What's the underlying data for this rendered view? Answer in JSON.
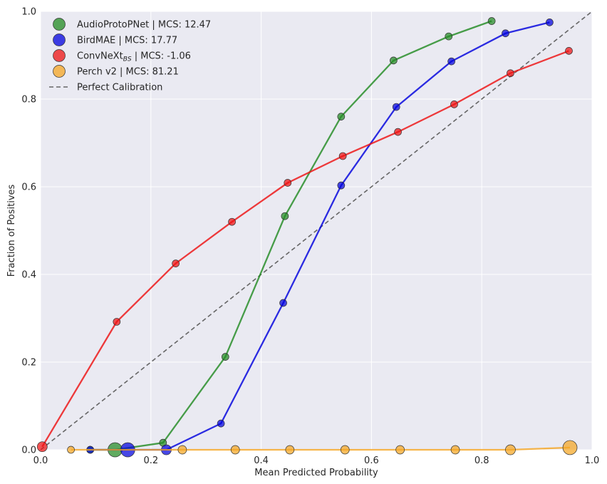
{
  "chart_data": {
    "type": "line",
    "xlabel": "Mean Predicted Probability",
    "ylabel": "Fraction of Positives",
    "xlim": [
      0,
      1
    ],
    "ylim": [
      0,
      1
    ],
    "xticks": [
      "0.0",
      "0.2",
      "0.4",
      "0.6",
      "0.8",
      "1.0"
    ],
    "yticks": [
      "0.0",
      "0.2",
      "0.4",
      "0.6",
      "0.8",
      "1.0"
    ],
    "grid": true,
    "legend_position": "top-left",
    "background_color": "#eaeaf2",
    "series": [
      {
        "name": "AudioProtoPNet | MCS: 12.47",
        "color": "#228b22",
        "points": [
          {
            "x": 0.09,
            "y": 0.0,
            "size": 5
          },
          {
            "x": 0.135,
            "y": 0.0,
            "size": 10
          },
          {
            "x": 0.222,
            "y": 0.016,
            "size": 5
          },
          {
            "x": 0.335,
            "y": 0.212,
            "size": 5
          },
          {
            "x": 0.443,
            "y": 0.533,
            "size": 5
          },
          {
            "x": 0.545,
            "y": 0.76,
            "size": 5
          },
          {
            "x": 0.64,
            "y": 0.888,
            "size": 5
          },
          {
            "x": 0.74,
            "y": 0.943,
            "size": 5
          },
          {
            "x": 0.818,
            "y": 0.978,
            "size": 5
          }
        ]
      },
      {
        "name": "BirdMAE | MCS: 17.77",
        "color": "#0000dd",
        "points": [
          {
            "x": 0.09,
            "y": 0.0,
            "size": 5
          },
          {
            "x": 0.158,
            "y": 0.0,
            "size": 10
          },
          {
            "x": 0.228,
            "y": 0.0,
            "size": 7
          },
          {
            "x": 0.327,
            "y": 0.06,
            "size": 5
          },
          {
            "x": 0.44,
            "y": 0.335,
            "size": 5
          },
          {
            "x": 0.545,
            "y": 0.603,
            "size": 5
          },
          {
            "x": 0.645,
            "y": 0.782,
            "size": 5
          },
          {
            "x": 0.745,
            "y": 0.886,
            "size": 5
          },
          {
            "x": 0.843,
            "y": 0.95,
            "size": 5
          },
          {
            "x": 0.923,
            "y": 0.975,
            "size": 5
          }
        ]
      },
      {
        "name": "ConvNeXt",
        "name_subscript": "BS",
        "name_suffix": " | MCS: -1.06",
        "color": "#ee1111",
        "points": [
          {
            "x": 0.003,
            "y": 0.007,
            "size": 7
          },
          {
            "x": 0.138,
            "y": 0.292,
            "size": 5
          },
          {
            "x": 0.245,
            "y": 0.425,
            "size": 5
          },
          {
            "x": 0.347,
            "y": 0.52,
            "size": 5
          },
          {
            "x": 0.448,
            "y": 0.609,
            "size": 5
          },
          {
            "x": 0.548,
            "y": 0.67,
            "size": 5
          },
          {
            "x": 0.648,
            "y": 0.725,
            "size": 5
          },
          {
            "x": 0.75,
            "y": 0.788,
            "size": 5
          },
          {
            "x": 0.852,
            "y": 0.859,
            "size": 5
          },
          {
            "x": 0.958,
            "y": 0.91,
            "size": 5
          }
        ]
      },
      {
        "name": "Perch v2 | MCS: 81.21",
        "color": "#f5a623",
        "points": [
          {
            "x": 0.055,
            "y": 0.0,
            "size": 5
          },
          {
            "x": 0.257,
            "y": 0.0,
            "size": 6
          },
          {
            "x": 0.353,
            "y": 0.0,
            "size": 6
          },
          {
            "x": 0.452,
            "y": 0.0,
            "size": 6
          },
          {
            "x": 0.552,
            "y": 0.0,
            "size": 6
          },
          {
            "x": 0.652,
            "y": 0.0,
            "size": 6
          },
          {
            "x": 0.752,
            "y": 0.0,
            "size": 6
          },
          {
            "x": 0.852,
            "y": 0.0,
            "size": 7
          },
          {
            "x": 0.96,
            "y": 0.005,
            "size": 10
          }
        ]
      }
    ],
    "reference_line": {
      "name": "Perfect Calibration",
      "style": "dashed",
      "color": "#666666",
      "from": [
        0,
        0
      ],
      "to": [
        1,
        1
      ]
    }
  }
}
